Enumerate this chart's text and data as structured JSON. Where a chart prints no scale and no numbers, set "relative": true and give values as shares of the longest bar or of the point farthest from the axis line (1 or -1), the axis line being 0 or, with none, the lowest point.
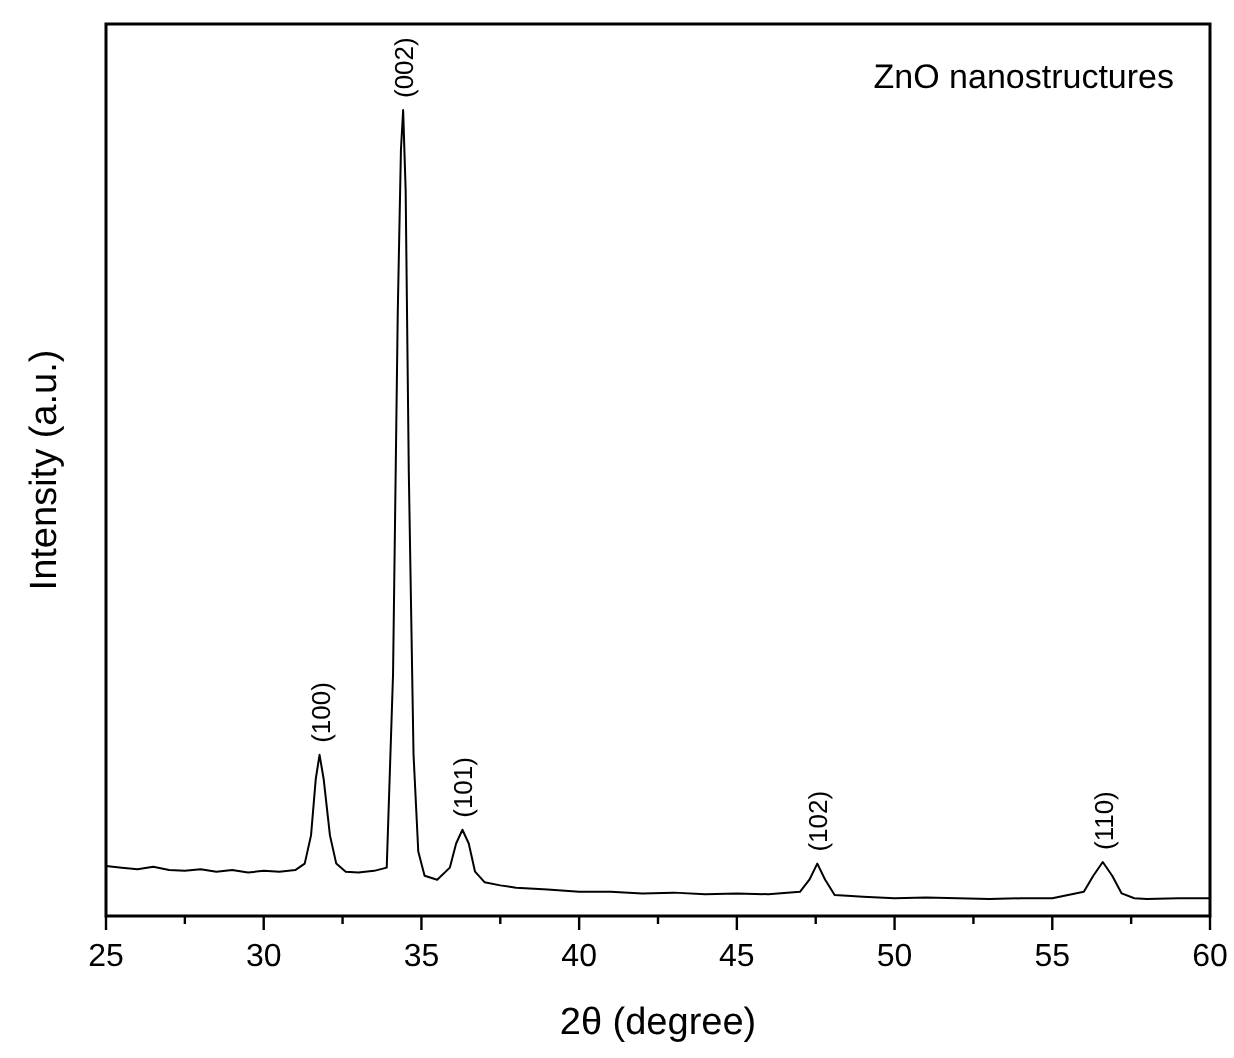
{
  "chart_data": {
    "type": "line",
    "title": "ZnO nanostructures",
    "xlabel": "2θ (degree)",
    "ylabel": "Intensity (a.u.)",
    "relative": true,
    "xlim": [
      25,
      60
    ],
    "xticks": [
      25,
      {
        "value": 27.5,
        "label": null
      },
      30,
      {
        "value": 32.5,
        "label": null
      },
      35,
      {
        "value": 37.5,
        "label": null
      },
      40,
      {
        "value": 42.5,
        "label": null
      },
      45,
      {
        "value": 47.5,
        "label": null
      },
      50,
      {
        "value": 52.5,
        "label": null
      },
      55,
      {
        "value": 57.5,
        "label": null
      },
      60
    ],
    "series": [
      {
        "color": "#000000",
        "x": [
          25,
          25.5,
          26,
          26.5,
          27,
          27.5,
          28,
          28.5,
          29,
          29.5,
          30,
          30.5,
          31,
          31.3,
          31.5,
          31.65,
          31.77,
          31.9,
          32.1,
          32.3,
          32.6,
          33,
          33.5,
          33.9,
          34.1,
          34.25,
          34.35,
          34.42,
          34.5,
          34.6,
          34.75,
          34.9,
          35.1,
          35.5,
          35.9,
          36.1,
          36.3,
          36.5,
          36.7,
          37,
          37.5,
          38,
          39,
          40,
          41,
          42,
          43,
          44,
          45,
          46,
          47,
          47.3,
          47.55,
          47.8,
          48.1,
          48.5,
          49,
          50,
          51,
          52,
          53,
          54,
          55,
          56,
          56.3,
          56.6,
          56.9,
          57.2,
          57.6,
          58,
          59,
          60
        ],
        "values": [
          0.062,
          0.06,
          0.058,
          0.061,
          0.057,
          0.056,
          0.058,
          0.055,
          0.057,
          0.054,
          0.056,
          0.055,
          0.057,
          0.065,
          0.1,
          0.17,
          0.2,
          0.17,
          0.1,
          0.065,
          0.055,
          0.054,
          0.056,
          0.06,
          0.3,
          0.75,
          0.95,
          1,
          0.9,
          0.55,
          0.2,
          0.08,
          0.05,
          0.045,
          0.06,
          0.09,
          0.107,
          0.09,
          0.055,
          0.042,
          0.038,
          0.035,
          0.033,
          0.03,
          0.03,
          0.028,
          0.029,
          0.027,
          0.028,
          0.027,
          0.03,
          0.045,
          0.065,
          0.045,
          0.026,
          0.025,
          0.024,
          0.022,
          0.023,
          0.022,
          0.021,
          0.022,
          0.022,
          0.03,
          0.05,
          0.067,
          0.05,
          0.028,
          0.022,
          0.021,
          0.022,
          0.022
        ]
      }
    ],
    "annotations": [
      {
        "text": "(100)",
        "x": 31.77,
        "y": 0.2
      },
      {
        "text": "(002)",
        "x": 34.42,
        "y": 1
      },
      {
        "text": "(101)",
        "x": 36.3,
        "y": 0.107
      },
      {
        "text": "(102)",
        "x": 47.55,
        "y": 0.065
      },
      {
        "text": "(110)",
        "x": 56.6,
        "y": 0.067
      }
    ],
    "grid": false
  }
}
